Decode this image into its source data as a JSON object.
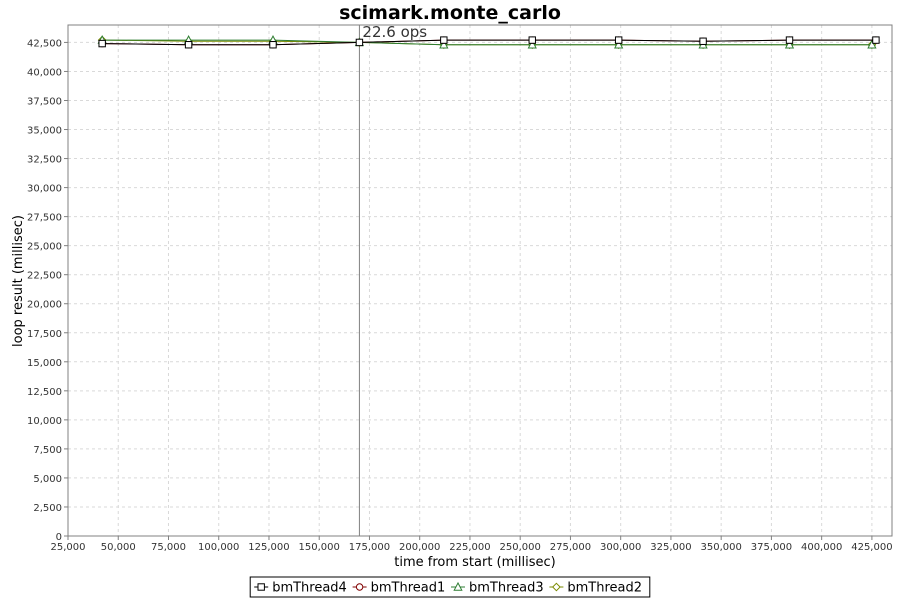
{
  "chart_data": {
    "type": "line",
    "title": "scimark.monte_carlo",
    "xlabel": "time from start (millisec)",
    "ylabel": "loop result (millisec)",
    "xlim": [
      25000,
      435000
    ],
    "ylim": [
      0,
      44000
    ],
    "x_ticks": [
      25000,
      50000,
      75000,
      100000,
      125000,
      150000,
      175000,
      200000,
      225000,
      250000,
      275000,
      300000,
      325000,
      350000,
      375000,
      400000,
      425000
    ],
    "x_tick_labels": [
      "25,000",
      "50,000",
      "75,000",
      "100,000",
      "125,000",
      "150,000",
      "175,000",
      "200,000",
      "225,000",
      "250,000",
      "275,000",
      "300,000",
      "325,000",
      "350,000",
      "375,000",
      "400,000",
      "425,000"
    ],
    "y_ticks": [
      0,
      2500,
      5000,
      7500,
      10000,
      12500,
      15000,
      17500,
      20000,
      22500,
      25000,
      27500,
      30000,
      32500,
      35000,
      37500,
      40000,
      42500
    ],
    "y_tick_labels": [
      "0",
      "2,500",
      "5,000",
      "7,500",
      "10,000",
      "12,500",
      "15,000",
      "17,500",
      "20,000",
      "22,500",
      "25,000",
      "27,500",
      "30,000",
      "32,500",
      "35,000",
      "37,500",
      "40,000",
      "42,500"
    ],
    "grid": true,
    "legend_position": "bottom",
    "annotation": {
      "x": 170000,
      "label": "22.6 ops"
    },
    "series": [
      {
        "name": "bmThread4",
        "color": "#000000",
        "marker": "square",
        "x": [
          42000,
          85000,
          127000,
          170000,
          212000,
          256000,
          299000,
          341000,
          384000,
          427000
        ],
        "y": [
          42400,
          42300,
          42300,
          42500,
          42700,
          42700,
          42700,
          42600,
          42700,
          42700
        ]
      },
      {
        "name": "bmThread1",
        "color": "#800000",
        "marker": "circle",
        "x": [
          42000,
          85000,
          127000,
          170000,
          212000,
          256000,
          299000,
          341000,
          384000,
          427000
        ],
        "y": [
          42400,
          42300,
          42300,
          42500,
          42700,
          42700,
          42700,
          42600,
          42700,
          42700
        ]
      },
      {
        "name": "bmThread3",
        "color": "#2e7d32",
        "marker": "triangle",
        "x": [
          42000,
          85000,
          127000,
          170000,
          212000,
          256000,
          299000,
          341000,
          384000,
          425000
        ],
        "y": [
          42700,
          42700,
          42700,
          42500,
          42300,
          42300,
          42300,
          42300,
          42300,
          42300
        ]
      },
      {
        "name": "bmThread2",
        "color": "#7a8a00",
        "marker": "diamond",
        "x": [
          42000,
          85000,
          127000,
          170000,
          212000,
          256000,
          299000,
          341000,
          384000,
          425000
        ],
        "y": [
          42700,
          42600,
          42600,
          42500,
          42300,
          42300,
          42300,
          42300,
          42300,
          42300
        ]
      }
    ]
  }
}
